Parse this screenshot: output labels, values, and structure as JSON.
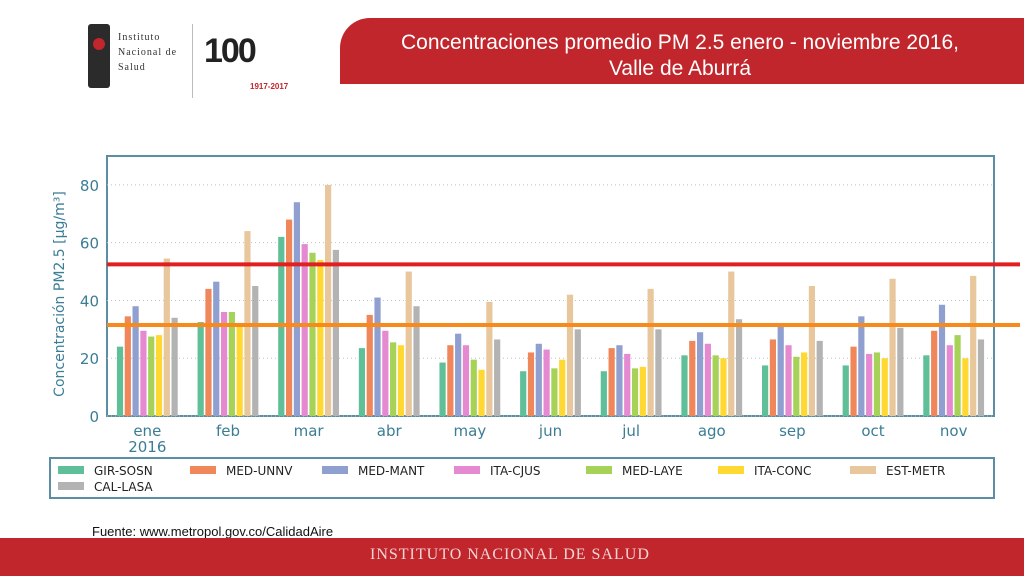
{
  "header": {
    "org_line1": "Instituto",
    "org_line2": "Nacional de",
    "org_line3": "Salud",
    "anniversary": "100",
    "anniversary_years": "1917-2017",
    "title_line1": "Concentraciones promedio PM 2.5 enero - noviembre 2016,",
    "title_line2": "Valle de Aburrá"
  },
  "source": "Fuente: www.metropol.gov.co/CalidadAire",
  "footer": "INSTITUTO NACIONAL  DE  SALUD",
  "chart_data": {
    "type": "bar",
    "ylabel": "Concentración PM2.5 [μg/m³]",
    "ylim": [
      0,
      90
    ],
    "yticks": [
      0,
      20,
      40,
      60,
      80
    ],
    "grid": true,
    "categories": [
      "ene\n2016",
      "feb",
      "mar",
      "abr",
      "may",
      "jun",
      "jul",
      "ago",
      "sep",
      "oct",
      "nov"
    ],
    "series": [
      {
        "name": "GIR-SOSN",
        "color": "#5fbf98",
        "values": [
          24,
          32.5,
          62,
          23.5,
          18.5,
          15.5,
          15.5,
          21,
          17.5,
          17.5,
          21
        ]
      },
      {
        "name": "MED-UNNV",
        "color": "#f0875a",
        "values": [
          34.5,
          44,
          68,
          35,
          24.5,
          22,
          23.5,
          26,
          26.5,
          24,
          29.5
        ]
      },
      {
        "name": "MED-MANT",
        "color": "#8f9fd0",
        "values": [
          38,
          46.5,
          74,
          41,
          28.5,
          25,
          24.5,
          29,
          31,
          34.5,
          38.5
        ]
      },
      {
        "name": "ITA-CJUS",
        "color": "#e58ad1",
        "values": [
          29.5,
          36,
          59.5,
          29.5,
          24.5,
          23,
          21.5,
          25,
          24.5,
          21.5,
          24.5
        ]
      },
      {
        "name": "MED-LAYE",
        "color": "#a6d357",
        "values": [
          27.5,
          36,
          56.5,
          25.5,
          19.5,
          16.5,
          16.5,
          21,
          20.5,
          22,
          28
        ]
      },
      {
        "name": "ITA-CONC",
        "color": "#ffd832",
        "values": [
          28,
          32,
          54,
          24.5,
          16,
          19.5,
          17,
          20,
          22,
          20,
          20
        ]
      },
      {
        "name": "EST-METR",
        "color": "#e8c79c",
        "values": [
          54.5,
          64,
          80,
          50,
          39.5,
          42,
          44,
          50,
          45,
          47.5,
          48.5
        ]
      },
      {
        "name": "CAL-LASA",
        "color": "#b3b3b3",
        "values": [
          34,
          45,
          57.5,
          38,
          26.5,
          30,
          30,
          33.5,
          26,
          30.5,
          26.5
        ]
      }
    ],
    "reference_lines": [
      {
        "value": 52.5,
        "color": "#e02020"
      },
      {
        "value": 31.5,
        "color": "#f78a1d"
      }
    ],
    "legend_placement": "bottom"
  }
}
